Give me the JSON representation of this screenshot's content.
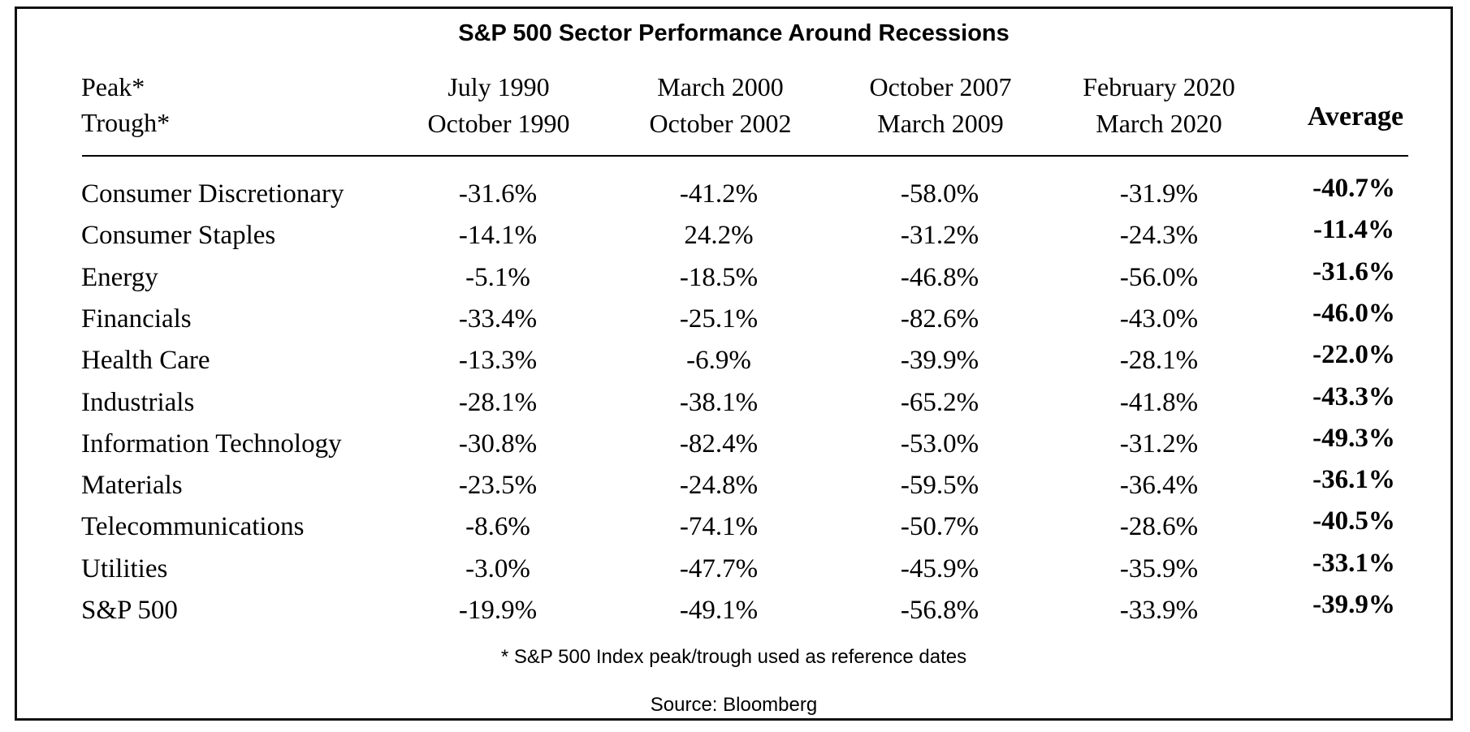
{
  "chart_data": {
    "type": "table",
    "title": "S&P 500 Sector Performance Around Recessions",
    "row_header_labels": [
      "Peak*",
      "Trough*"
    ],
    "columns": [
      {
        "peak": "July 1990",
        "trough": "October 1990"
      },
      {
        "peak": "March 2000",
        "trough": "October 2002"
      },
      {
        "peak": "October 2007",
        "trough": "March 2009"
      },
      {
        "peak": "February 2020",
        "trough": "March 2020"
      }
    ],
    "average_label": "Average",
    "rows": [
      {
        "sector": "Consumer Discretionary",
        "values": [
          "-31.6%",
          "-41.2%",
          "-58.0%",
          "-31.9%"
        ],
        "average": "-40.7%"
      },
      {
        "sector": "Consumer Staples",
        "values": [
          "-14.1%",
          "24.2%",
          "-31.2%",
          "-24.3%"
        ],
        "average": "-11.4%"
      },
      {
        "sector": "Energy",
        "values": [
          "-5.1%",
          "-18.5%",
          "-46.8%",
          "-56.0%"
        ],
        "average": "-31.6%"
      },
      {
        "sector": "Financials",
        "values": [
          "-33.4%",
          "-25.1%",
          "-82.6%",
          "-43.0%"
        ],
        "average": "-46.0%"
      },
      {
        "sector": "Health Care",
        "values": [
          "-13.3%",
          "-6.9%",
          "-39.9%",
          "-28.1%"
        ],
        "average": "-22.0%"
      },
      {
        "sector": "Industrials",
        "values": [
          "-28.1%",
          "-38.1%",
          "-65.2%",
          "-41.8%"
        ],
        "average": "-43.3%"
      },
      {
        "sector": "Information Technology",
        "values": [
          "-30.8%",
          "-82.4%",
          "-53.0%",
          "-31.2%"
        ],
        "average": "-49.3%"
      },
      {
        "sector": "Materials",
        "values": [
          "-23.5%",
          "-24.8%",
          "-59.5%",
          "-36.4%"
        ],
        "average": "-36.1%"
      },
      {
        "sector": "Telecommunications",
        "values": [
          "-8.6%",
          "-74.1%",
          "-50.7%",
          "-28.6%"
        ],
        "average": "-40.5%"
      },
      {
        "sector": "Utilities",
        "values": [
          "-3.0%",
          "-47.7%",
          "-45.9%",
          "-35.9%"
        ],
        "average": "-33.1%"
      },
      {
        "sector": "S&P 500",
        "values": [
          "-19.9%",
          "-49.1%",
          "-56.8%",
          "-33.9%"
        ],
        "average": "-39.9%"
      }
    ],
    "footnote": "* S&P 500 Index peak/trough used as reference dates",
    "source": "Source: Bloomberg"
  }
}
